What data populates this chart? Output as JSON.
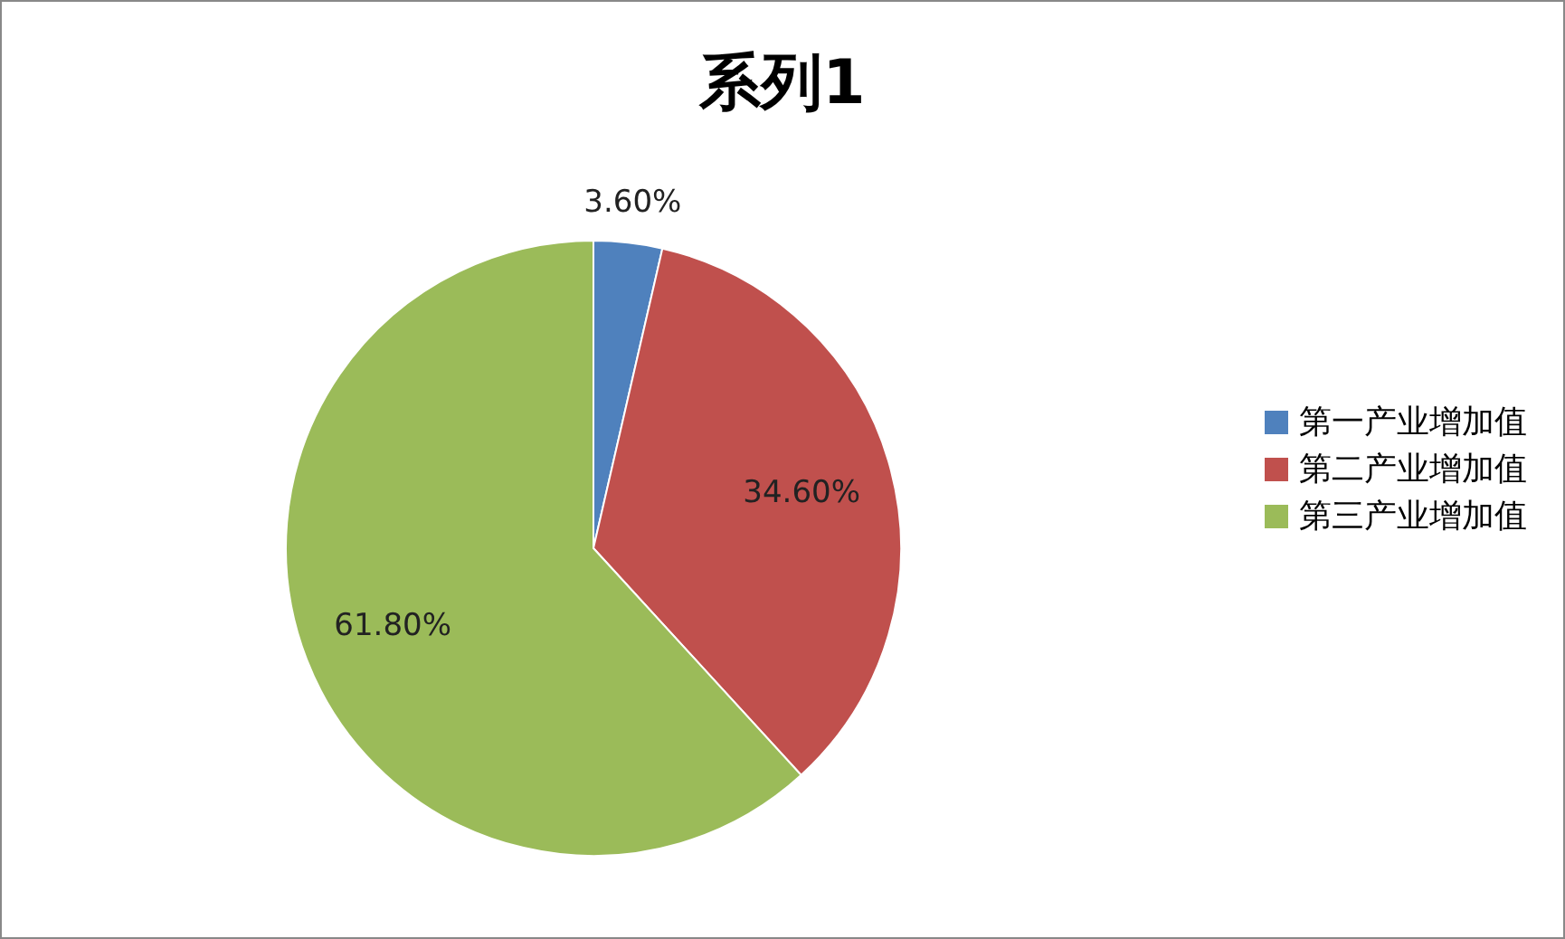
{
  "chart_data": {
    "type": "pie",
    "title": "系列1",
    "categories": [
      "第一产业增加值",
      "第二产业增加值",
      "第三产业增加值"
    ],
    "values": [
      3.6,
      34.6,
      61.8
    ],
    "colors": [
      "#4f81bd",
      "#c0504d",
      "#9bbb59"
    ],
    "value_labels": [
      "3.60%",
      "34.60%",
      "61.80%"
    ],
    "legend": "right"
  }
}
